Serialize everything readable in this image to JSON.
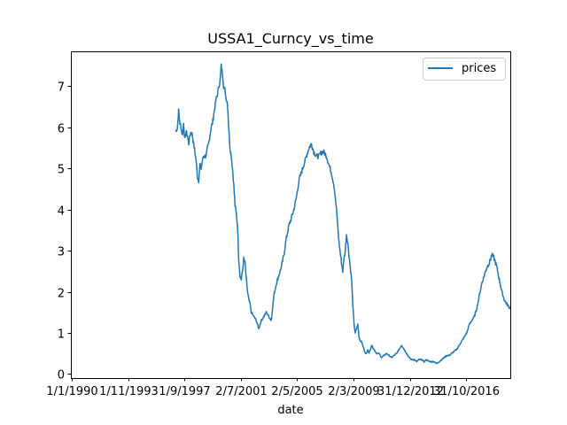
{
  "chart_data": {
    "type": "line",
    "title": "USSA1_Curncy_vs_time",
    "xlabel": "date",
    "ylabel": "",
    "x_tick_labels": [
      "1/1/1990",
      "1/11/1993",
      "1/9/1997",
      "2/7/2001",
      "2/5/2005",
      "2/3/2009",
      "31/12/2012",
      "31/10/2016"
    ],
    "y_ticks": [
      0,
      1,
      2,
      3,
      4,
      5,
      6,
      7
    ],
    "y_tick_labels": [
      "0",
      "1",
      "2",
      "3",
      "4",
      "5",
      "6",
      "7"
    ],
    "xlim": [
      "1989-12-31",
      "2019-03-25"
    ],
    "ylim": [
      -0.1,
      7.85
    ],
    "legend": {
      "position": "top-right",
      "entries": [
        "prices"
      ]
    },
    "grid": false,
    "colors": {
      "series": "#1f77b4",
      "axes": "#000000",
      "background": "#ffffff"
    },
    "series": [
      {
        "name": "prices",
        "x": [
          "1996-12-23",
          "1997-02-01",
          "1997-03-01",
          "1997-04-01",
          "1997-05-01",
          "1997-06-01",
          "1997-07-01",
          "1997-08-01",
          "1997-09-01",
          "1997-10-01",
          "1997-11-01",
          "1997-12-01",
          "1998-01-01",
          "1998-02-01",
          "1998-03-01",
          "1998-04-01",
          "1998-05-01",
          "1998-06-01",
          "1998-07-01",
          "1998-08-01",
          "1998-09-01",
          "1998-10-01",
          "1998-11-01",
          "1998-12-01",
          "1999-01-01",
          "1999-02-01",
          "1999-03-01",
          "1999-04-01",
          "1999-05-01",
          "1999-06-01",
          "1999-07-01",
          "1999-08-01",
          "1999-09-01",
          "1999-10-01",
          "1999-11-01",
          "1999-12-01",
          "2000-01-01",
          "2000-02-01",
          "2000-03-01",
          "2000-04-01",
          "2000-05-01",
          "2000-06-01",
          "2000-07-01",
          "2000-08-01",
          "2000-09-01",
          "2000-10-01",
          "2000-11-01",
          "2000-12-01",
          "2001-01-01",
          "2001-02-01",
          "2001-03-01",
          "2001-04-01",
          "2001-05-01",
          "2001-06-01",
          "2001-07-01",
          "2001-08-01",
          "2001-09-01",
          "2001-10-01",
          "2001-11-01",
          "2001-12-01",
          "2002-01-01",
          "2002-03-01",
          "2002-05-01",
          "2002-07-01",
          "2002-09-01",
          "2002-11-01",
          "2003-01-01",
          "2003-03-01",
          "2003-05-01",
          "2003-07-01",
          "2003-09-01",
          "2003-11-01",
          "2004-01-01",
          "2004-03-01",
          "2004-05-01",
          "2004-07-01",
          "2004-09-01",
          "2004-11-01",
          "2005-01-01",
          "2005-03-01",
          "2005-05-01",
          "2005-07-01",
          "2005-09-01",
          "2005-11-01",
          "2006-01-01",
          "2006-03-01",
          "2006-05-01",
          "2006-07-01",
          "2006-09-01",
          "2006-11-01",
          "2007-01-01",
          "2007-03-01",
          "2007-05-01",
          "2007-07-01",
          "2007-09-01",
          "2007-11-01",
          "2008-01-01",
          "2008-02-01",
          "2008-03-01",
          "2008-04-01",
          "2008-05-01",
          "2008-06-01",
          "2008-07-01",
          "2008-08-01",
          "2008-09-01",
          "2008-10-01",
          "2008-11-01",
          "2008-12-01",
          "2009-01-01",
          "2009-02-01",
          "2009-03-01",
          "2009-04-01",
          "2009-05-01",
          "2009-06-01",
          "2009-07-01",
          "2009-08-01",
          "2009-09-01",
          "2009-10-01",
          "2009-11-01",
          "2009-12-01",
          "2010-01-01",
          "2010-03-01",
          "2010-05-01",
          "2010-07-01",
          "2010-09-01",
          "2010-11-01",
          "2011-01-01",
          "2011-03-01",
          "2011-05-01",
          "2011-07-01",
          "2011-09-01",
          "2011-11-01",
          "2012-01-01",
          "2012-03-01",
          "2012-05-01",
          "2012-07-01",
          "2012-09-01",
          "2012-11-01",
          "2013-01-01",
          "2013-03-01",
          "2013-05-01",
          "2013-07-01",
          "2013-09-01",
          "2013-11-01",
          "2014-01-01",
          "2014-03-01",
          "2014-05-01",
          "2014-07-01",
          "2014-09-01",
          "2014-11-01",
          "2015-01-01",
          "2015-03-01",
          "2015-05-01",
          "2015-07-01",
          "2015-09-01",
          "2015-11-01",
          "2016-01-01",
          "2016-03-01",
          "2016-05-01",
          "2016-07-01",
          "2016-09-01",
          "2016-11-01",
          "2017-01-01",
          "2017-03-01",
          "2017-05-01",
          "2017-07-01",
          "2017-09-01",
          "2017-11-01",
          "2018-01-01",
          "2018-03-01",
          "2018-05-01",
          "2018-07-01",
          "2018-09-01",
          "2018-11-01",
          "2019-01-01",
          "2019-03-25"
        ],
        "y": [
          5.9,
          6.0,
          6.4,
          6.1,
          6.0,
          5.8,
          6.1,
          5.7,
          5.9,
          5.8,
          5.6,
          5.8,
          5.9,
          5.8,
          5.6,
          5.4,
          5.2,
          4.8,
          4.7,
          5.1,
          5.0,
          5.2,
          5.3,
          5.3,
          5.3,
          5.5,
          5.6,
          5.8,
          6.0,
          6.1,
          6.3,
          6.5,
          6.7,
          6.8,
          7.0,
          7.1,
          7.5,
          7.3,
          7.0,
          6.9,
          6.7,
          6.6,
          6.0,
          5.5,
          5.3,
          5.0,
          4.6,
          4.1,
          3.9,
          3.6,
          2.8,
          2.4,
          2.3,
          2.5,
          2.8,
          2.7,
          2.3,
          2.0,
          1.8,
          1.7,
          1.5,
          1.4,
          1.3,
          1.1,
          1.3,
          1.4,
          1.5,
          1.4,
          1.3,
          1.9,
          2.2,
          2.4,
          2.6,
          2.9,
          3.3,
          3.6,
          3.8,
          4.0,
          4.3,
          4.7,
          4.9,
          5.1,
          5.3,
          5.5,
          5.6,
          5.4,
          5.3,
          5.3,
          5.4,
          5.4,
          5.3,
          5.1,
          4.9,
          4.6,
          4.0,
          3.2,
          2.7,
          2.5,
          2.8,
          3.0,
          3.4,
          3.2,
          2.9,
          2.6,
          2.3,
          1.7,
          1.2,
          1.0,
          1.1,
          1.2,
          0.9,
          0.8,
          0.8,
          0.7,
          0.6,
          0.5,
          0.5,
          0.6,
          0.5,
          0.6,
          0.7,
          0.6,
          0.5,
          0.5,
          0.4,
          0.45,
          0.5,
          0.45,
          0.4,
          0.45,
          0.5,
          0.6,
          0.7,
          0.6,
          0.5,
          0.4,
          0.35,
          0.35,
          0.3,
          0.35,
          0.35,
          0.3,
          0.35,
          0.3,
          0.3,
          0.3,
          0.25,
          0.3,
          0.35,
          0.4,
          0.45,
          0.45,
          0.5,
          0.55,
          0.6,
          0.7,
          0.8,
          0.9,
          1.0,
          1.2,
          1.3,
          1.4,
          1.6,
          1.9,
          2.2,
          2.4,
          2.6,
          2.7,
          2.9,
          2.8,
          2.6,
          2.3,
          2.0,
          1.8,
          1.7,
          1.6
        ]
      }
    ]
  }
}
